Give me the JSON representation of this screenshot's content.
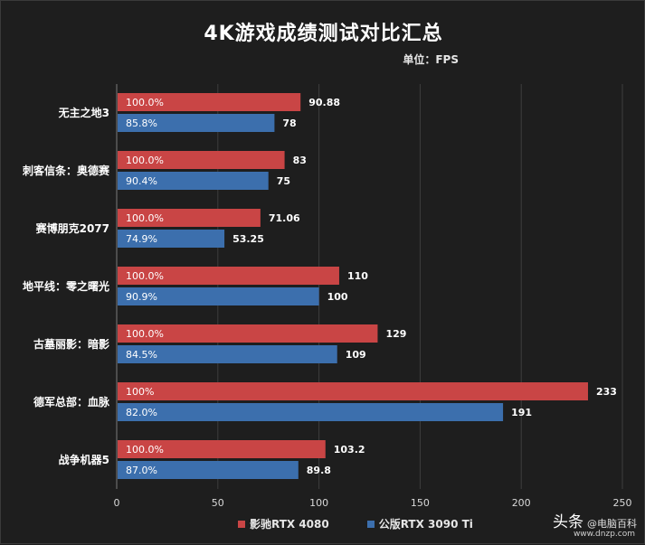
{
  "chart_data": {
    "type": "bar",
    "title": "4K游戏成绩测试对比汇总",
    "unit": "单位：FPS",
    "categories": [
      "无主之地3",
      "刺客信条：奥德赛",
      "赛博朋克2077",
      "地平线：零之曙光",
      "古墓丽影：暗影",
      "德军总部：血脉",
      "战争机器5"
    ],
    "series": [
      {
        "name": "影驰RTX 4080",
        "color": "#c94545",
        "values": [
          90.88,
          83,
          71.06,
          110,
          129,
          233,
          103.2
        ],
        "value_labels": [
          "90.88",
          "83",
          "71.06",
          "110",
          "129",
          "233",
          "103.2"
        ],
        "percent_labels": [
          "100.0%",
          "100.0%",
          "100.0%",
          "100.0%",
          "100.0%",
          "100%",
          "100.0%"
        ]
      },
      {
        "name": "公版RTX 3090 Ti",
        "color": "#3c6fad",
        "values": [
          78,
          75,
          53.25,
          100,
          109,
          191,
          89.8
        ],
        "value_labels": [
          "78",
          "75",
          "53.25",
          "100",
          "109",
          "191",
          "89.8"
        ],
        "percent_labels": [
          "85.8%",
          "90.4%",
          "74.9%",
          "90.9%",
          "84.5%",
          "82.0%",
          "87.0%"
        ]
      }
    ],
    "xlim": [
      0,
      250
    ],
    "xticks": [
      0,
      50,
      100,
      150,
      200,
      250
    ],
    "grid": true,
    "legend": "bottom"
  },
  "watermark": {
    "brand": "头条",
    "handle": "@电脑百科",
    "url": "www.dnzp.com"
  }
}
